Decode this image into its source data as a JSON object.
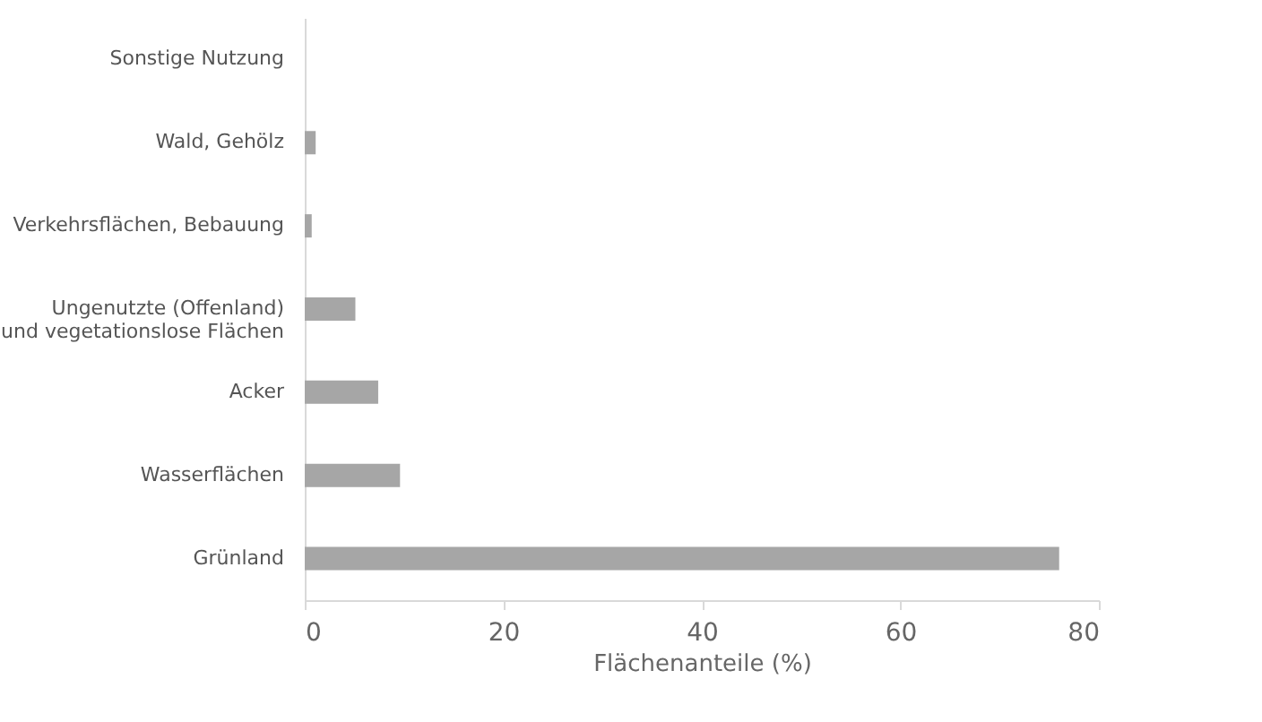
{
  "chart_data": {
    "type": "bar",
    "orientation": "horizontal",
    "xlabel": "Flächenanteile (%)",
    "categories": [
      "Sonstige Nutzung",
      "Wald, Gehölz",
      "Verkehrsflächen, Bebauung",
      "Ungenutzte (Offenland)\nund vegetationslose Flächen",
      "Acker",
      "Wasserflächen",
      "Grünland"
    ],
    "values": [
      0,
      1.1,
      0.7,
      5.1,
      7.4,
      9.6,
      76
    ],
    "color": "#a6a6a6",
    "xlim": [
      0,
      80
    ],
    "xticks": [
      0,
      20,
      40,
      60,
      80
    ],
    "grid": false
  }
}
